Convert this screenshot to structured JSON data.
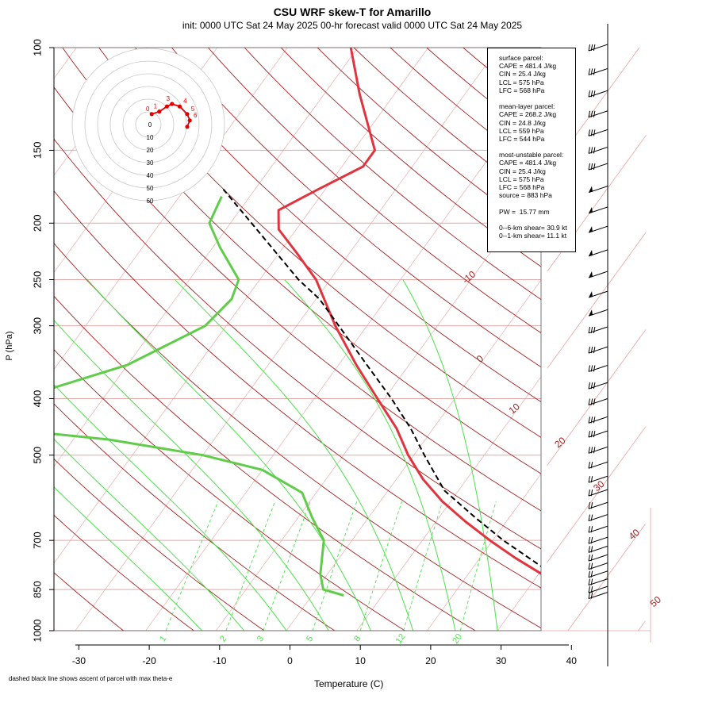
{
  "header": {
    "title": "CSU WRF skew-T for Amarillo",
    "subtitle": "init: 0000 UTC Sat 24 May 2025     00-hr forecast valid 0000 UTC Sat 24 May 2025"
  },
  "footnote": "dashed black line shows ascent of parcel with max theta-e",
  "colors": {
    "temperature": "#e0343f",
    "dewpoint": "#5fcc4a",
    "parcel": "#000000",
    "isotherm": "#e9a0a0",
    "dry_adiabat": "#a52020",
    "moist_adiabat": "#49e34a",
    "mixing_ratio": "#49e34a",
    "isobar": "#e2a8a8",
    "hodograph": "#e10000"
  },
  "stats_lines": [
    "surface parcel:",
    "CAPE = 481.4 J/kg",
    "CIN = 25.4 J/kg",
    "LCL = 575 hPa",
    "LFC = 568 hPa",
    "",
    "mean-layer parcel:",
    "CAPE = 268.2 J/kg",
    "CIN = 24.8 J/kg",
    "LCL = 559 hPa",
    "LFC = 544 hPa",
    "",
    "most-unstable parcel:",
    "CAPE = 481.4 J/kg",
    "CIN = 25.4 J/kg",
    "LCL = 575 hPa",
    "LFC = 568 hPa",
    "source = 883 hPa",
    "",
    "PW =  15.77 mm",
    "",
    "0--6-km shear= 30.9 kt",
    "0--1-km shear= 11.1 kt"
  ],
  "chart_data": {
    "type": "skew-t",
    "xlabel": "Temperature (C)",
    "ylabel": "P (hPa)",
    "x_ticks": [
      "-30",
      "-20",
      "-10",
      "0",
      "10",
      "20",
      "30",
      "40"
    ],
    "x_tick_values": [
      -30,
      -20,
      -10,
      0,
      10,
      20,
      30,
      40
    ],
    "y_ticks": [
      "100",
      "150",
      "200",
      "250",
      "300",
      "400",
      "500",
      "700",
      "850",
      "1000"
    ],
    "y_tick_values": [
      100,
      150,
      200,
      250,
      300,
      400,
      500,
      700,
      850,
      1000
    ],
    "xlim": [
      -33,
      43
    ],
    "ylim": [
      1000,
      100
    ],
    "isotherm_labels": [
      {
        "text": "-10",
        "value": -10,
        "p": 250
      },
      {
        "text": "0",
        "value": 0,
        "p": 345
      },
      {
        "text": "10",
        "value": 10,
        "p": 420
      },
      {
        "text": "20",
        "value": 20,
        "p": 480
      },
      {
        "text": "30",
        "value": 30,
        "p": 570
      },
      {
        "text": "40",
        "value": 40,
        "p": 690
      },
      {
        "text": "50",
        "value": 50,
        "p": 900
      }
    ],
    "mixing_ratio_labels": [
      "1",
      "2",
      "3",
      "5",
      "8",
      "12",
      "20"
    ],
    "mixing_ratio_values": [
      1,
      2,
      3,
      5,
      8,
      12,
      20
    ],
    "temperature_profile": [
      {
        "p": 870,
        "t": 38.6
      },
      {
        "p": 850,
        "t": 36.0
      },
      {
        "p": 800,
        "t": 30.5
      },
      {
        "p": 750,
        "t": 25.0
      },
      {
        "p": 700,
        "t": 19.6
      },
      {
        "p": 650,
        "t": 14.2
      },
      {
        "p": 600,
        "t": 8.8
      },
      {
        "p": 550,
        "t": 3.8
      },
      {
        "p": 500,
        "t": -0.8
      },
      {
        "p": 450,
        "t": -5.2
      },
      {
        "p": 400,
        "t": -11.0
      },
      {
        "p": 350,
        "t": -17.5
      },
      {
        "p": 300,
        "t": -24.5
      },
      {
        "p": 250,
        "t": -32.0
      },
      {
        "p": 225,
        "t": -37.5
      },
      {
        "p": 205,
        "t": -42.5
      },
      {
        "p": 190,
        "t": -44.5
      },
      {
        "p": 175,
        "t": -41.0
      },
      {
        "p": 160,
        "t": -37.0
      },
      {
        "p": 150,
        "t": -37.0
      },
      {
        "p": 120,
        "t": -45.0
      },
      {
        "p": 100,
        "t": -51.0
      }
    ],
    "dewpoint_profile": [
      {
        "p": 870,
        "td": 4.5
      },
      {
        "p": 850,
        "td": 1.0
      },
      {
        "p": 800,
        "td": -1.0
      },
      {
        "p": 700,
        "td": -4.0
      },
      {
        "p": 640,
        "td": -8.0
      },
      {
        "p": 580,
        "td": -12.0
      },
      {
        "p": 530,
        "td": -20.0
      },
      {
        "p": 500,
        "td": -30.0
      },
      {
        "p": 470,
        "td": -45.0
      },
      {
        "p": 440,
        "td": -70.0
      },
      {
        "p": 420,
        "td": -66.0
      },
      {
        "p": 400,
        "td": -62.0
      },
      {
        "p": 350,
        "td": -50.0
      },
      {
        "p": 300,
        "td": -43.0
      },
      {
        "p": 270,
        "td": -42.0
      },
      {
        "p": 250,
        "td": -43.0
      },
      {
        "p": 220,
        "td": -49.0
      },
      {
        "p": 200,
        "td": -53.0
      },
      {
        "p": 180,
        "td": -54.0
      }
    ],
    "parcel_profile": [
      {
        "p": 870,
        "t": 39.5
      },
      {
        "p": 800,
        "t": 32.0
      },
      {
        "p": 700,
        "t": 21.5
      },
      {
        "p": 640,
        "t": 15.2
      },
      {
        "p": 575,
        "t": 8.0
      },
      {
        "p": 500,
        "t": 1.5
      },
      {
        "p": 450,
        "t": -3.2
      },
      {
        "p": 400,
        "t": -9.0
      },
      {
        "p": 350,
        "t": -16.0
      },
      {
        "p": 300,
        "t": -24.0
      },
      {
        "p": 270,
        "t": -29.5
      },
      {
        "p": 250,
        "t": -34.5
      },
      {
        "p": 200,
        "t": -47.0
      },
      {
        "p": 175,
        "t": -54.5
      }
    ],
    "hodograph": {
      "ring_labels": [
        "0",
        "10",
        "20",
        "30",
        "40",
        "50",
        "60"
      ],
      "point_labels": [
        "0",
        "1",
        "3",
        "4",
        "5",
        "6"
      ],
      "points": [
        [
          -8,
          2
        ],
        [
          -2,
          4
        ],
        [
          4,
          8
        ],
        [
          8,
          10
        ],
        [
          14,
          8
        ],
        [
          20,
          2
        ],
        [
          22,
          -3
        ],
        [
          20,
          -8
        ]
      ]
    },
    "wind_barbs": [
      {
        "p": 100
      },
      {
        "p": 110
      },
      {
        "p": 120
      },
      {
        "p": 130
      },
      {
        "p": 140
      },
      {
        "p": 150
      },
      {
        "p": 160
      },
      {
        "p": 175
      },
      {
        "p": 190
      },
      {
        "p": 205
      },
      {
        "p": 225
      },
      {
        "p": 245
      },
      {
        "p": 265
      },
      {
        "p": 285
      },
      {
        "p": 305
      },
      {
        "p": 330
      },
      {
        "p": 355
      },
      {
        "p": 380
      },
      {
        "p": 405
      },
      {
        "p": 435
      },
      {
        "p": 460
      },
      {
        "p": 490
      },
      {
        "p": 520
      },
      {
        "p": 550
      },
      {
        "p": 580
      },
      {
        "p": 610
      },
      {
        "p": 640
      },
      {
        "p": 670
      },
      {
        "p": 700
      },
      {
        "p": 725
      },
      {
        "p": 750
      },
      {
        "p": 775
      },
      {
        "p": 800
      },
      {
        "p": 825
      },
      {
        "p": 850
      },
      {
        "p": 870
      }
    ]
  }
}
